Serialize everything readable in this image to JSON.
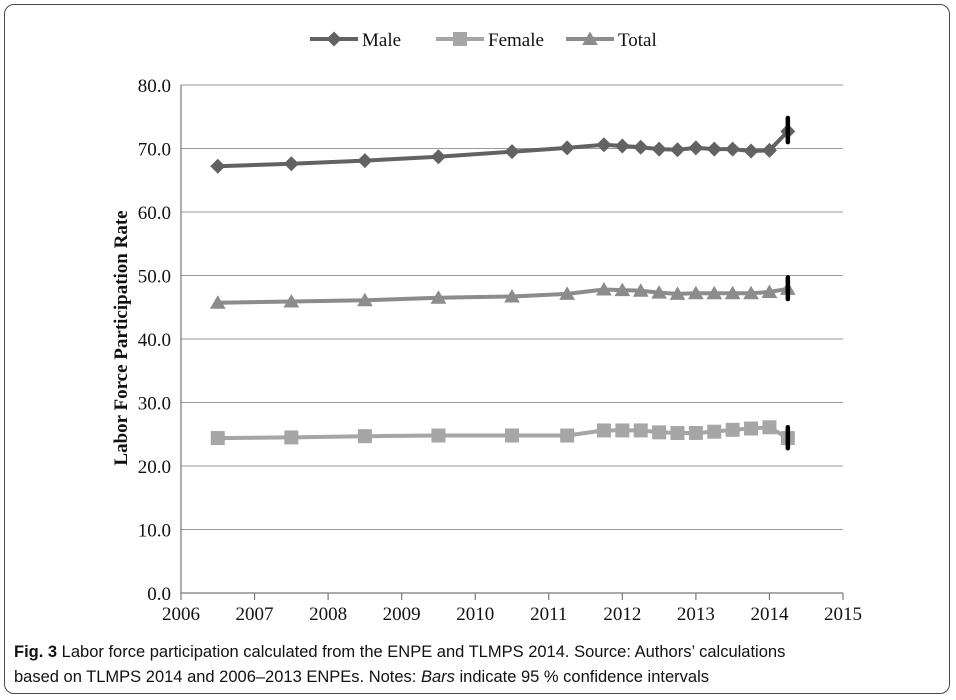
{
  "chart_data": {
    "type": "line",
    "title": "",
    "xlabel": "",
    "ylabel": "Labor Force Participation Rate",
    "xlim": [
      2006,
      2015
    ],
    "ylim": [
      0,
      80
    ],
    "x_ticks": [
      "2006",
      "2007",
      "2008",
      "2009",
      "2010",
      "2011",
      "2012",
      "2013",
      "2014",
      "2015"
    ],
    "y_ticks": [
      "0.0",
      "10.0",
      "20.0",
      "30.0",
      "40.0",
      "50.0",
      "60.0",
      "70.0",
      "80.0"
    ],
    "grid": "horizontal",
    "legend_position": "top",
    "series": [
      {
        "name": "Male",
        "marker": "diamond",
        "color": "#626262",
        "x": [
          2006.5,
          2007.5,
          2008.5,
          2009.5,
          2010.5,
          2011.25,
          2011.75,
          2012.0,
          2012.25,
          2012.5,
          2012.75,
          2013.0,
          2013.25,
          2013.5,
          2013.75,
          2014.0,
          2014.25
        ],
        "y": [
          67.2,
          67.6,
          68.1,
          68.7,
          69.5,
          70.1,
          70.6,
          70.4,
          70.2,
          69.9,
          69.8,
          70.1,
          69.9,
          69.9,
          69.6,
          69.7,
          72.7
        ],
        "ci": [
          71.0,
          74.8
        ]
      },
      {
        "name": "Female",
        "marker": "square",
        "color": "#a6a6a6",
        "x": [
          2006.5,
          2007.5,
          2008.5,
          2009.5,
          2010.5,
          2011.25,
          2011.75,
          2012.0,
          2012.25,
          2012.5,
          2012.75,
          2013.0,
          2013.25,
          2013.5,
          2013.75,
          2014.0,
          2014.25
        ],
        "y": [
          24.4,
          24.5,
          24.7,
          24.8,
          24.8,
          24.8,
          25.6,
          25.6,
          25.6,
          25.3,
          25.2,
          25.2,
          25.4,
          25.7,
          25.9,
          26.1,
          24.4
        ],
        "ci": [
          22.8,
          26.1
        ]
      },
      {
        "name": "Total",
        "marker": "triangle",
        "color": "#8c8c8c",
        "x": [
          2006.5,
          2007.5,
          2008.5,
          2009.5,
          2010.5,
          2011.25,
          2011.75,
          2012.0,
          2012.25,
          2012.5,
          2012.75,
          2013.0,
          2013.25,
          2013.5,
          2013.75,
          2014.0,
          2014.25
        ],
        "y": [
          45.7,
          45.9,
          46.1,
          46.5,
          46.7,
          47.1,
          47.8,
          47.7,
          47.6,
          47.3,
          47.1,
          47.2,
          47.2,
          47.2,
          47.2,
          47.4,
          47.9
        ],
        "ci": [
          46.3,
          49.7
        ]
      }
    ]
  },
  "caption": {
    "fig_label": "Fig. 3",
    "line1": " Labor force participation calculated from the ENPE and TLMPS 2014. Source: Authors’ calculations",
    "line2_pre": "based on TLMPS 2014 and 2006–2013 ENPEs. Notes: ",
    "line2_em": "Bars",
    "line2_post": " indicate 95 % confidence intervals"
  }
}
